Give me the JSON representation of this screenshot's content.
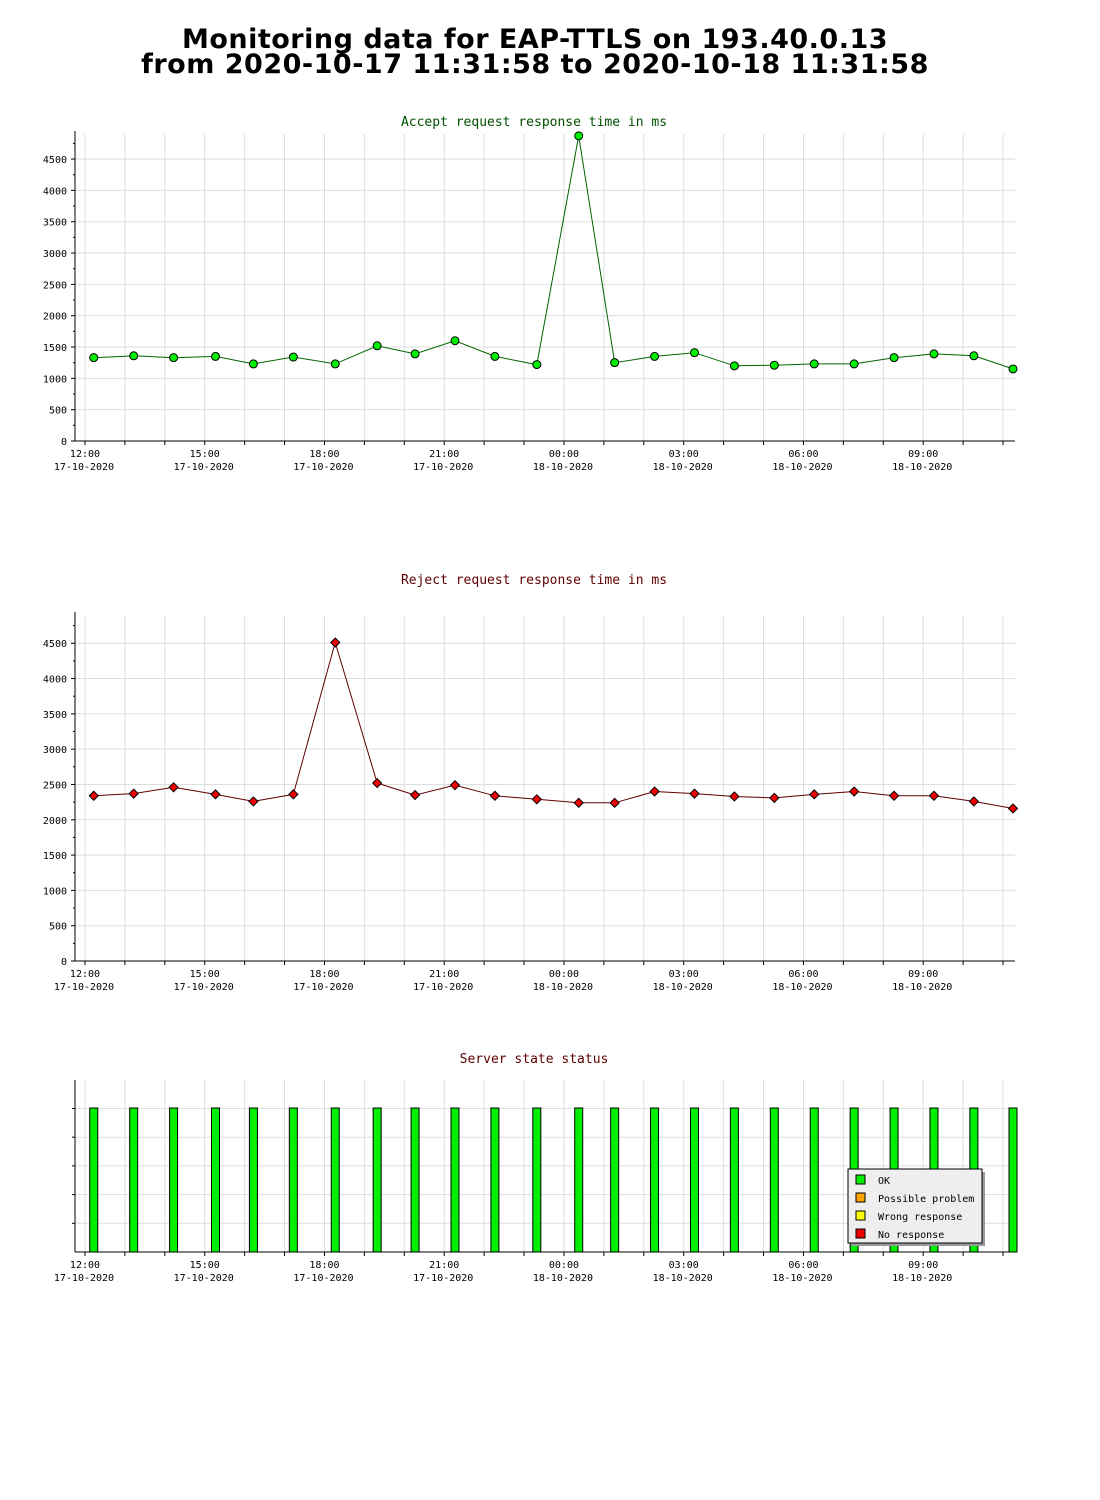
{
  "page": {
    "title_line1": "Monitoring data for EAP-TTLS on 193.40.0.13",
    "title_line2": "from 2020-10-17 11:31:58 to 2020-10-18 11:31:58"
  },
  "colors": {
    "accept_line": "#006400",
    "accept_marker": "#00ee00",
    "reject_line": "#600000",
    "reject_marker": "#ee0000",
    "status_bar": "#00ee00",
    "grid": "#dddddd",
    "legend_ok": "#00ee00",
    "legend_possible": "#ffa500",
    "legend_wrong": "#ffff00",
    "legend_noresp": "#ee0000",
    "accept_title": "#005000",
    "reject_title": "#600000",
    "status_title": "#600000"
  },
  "chart_data": [
    {
      "id": "accept",
      "type": "line",
      "title": "Accept request response time in ms",
      "x_range_hours": [
        11.75,
        35.3
      ],
      "ylim": [
        0,
        4900
      ],
      "yticks": [
        0,
        500,
        1000,
        1500,
        2000,
        2500,
        3000,
        3500,
        4000,
        4500
      ],
      "xticks": [
        {
          "hour": 12,
          "label": "12:00",
          "date": "17-10-2020"
        },
        {
          "hour": 15,
          "label": "15:00",
          "date": "17-10-2020"
        },
        {
          "hour": 18,
          "label": "18:00",
          "date": "17-10-2020"
        },
        {
          "hour": 21,
          "label": "21:00",
          "date": "17-10-2020"
        },
        {
          "hour": 24,
          "label": "00:00",
          "date": "18-10-2020"
        },
        {
          "hour": 27,
          "label": "03:00",
          "date": "18-10-2020"
        },
        {
          "hour": 30,
          "label": "06:00",
          "date": "18-10-2020"
        },
        {
          "hour": 33,
          "label": "09:00",
          "date": "18-10-2020"
        }
      ],
      "grid": true,
      "x_hours": [
        12.22,
        13.22,
        14.22,
        15.27,
        16.22,
        17.22,
        18.27,
        19.32,
        20.27,
        21.27,
        22.27,
        23.32,
        24.37,
        25.27,
        26.27,
        27.27,
        28.27,
        29.27,
        30.27,
        31.27,
        32.27,
        33.27,
        34.27,
        35.25
      ],
      "values": [
        1330,
        1360,
        1330,
        1350,
        1230,
        1340,
        1230,
        1520,
        1390,
        1600,
        1350,
        1220,
        4870,
        1250,
        1350,
        1410,
        1200,
        1210,
        1230,
        1230,
        1330,
        1390,
        1360,
        1150
      ]
    },
    {
      "id": "reject",
      "type": "line",
      "title": "Reject request response time in ms",
      "x_range_hours": [
        11.75,
        35.3
      ],
      "ylim": [
        0,
        4900
      ],
      "yticks": [
        0,
        500,
        1000,
        1500,
        2000,
        2500,
        3000,
        3500,
        4000,
        4500
      ],
      "xticks": [
        {
          "hour": 12,
          "label": "12:00",
          "date": "17-10-2020"
        },
        {
          "hour": 15,
          "label": "15:00",
          "date": "17-10-2020"
        },
        {
          "hour": 18,
          "label": "18:00",
          "date": "17-10-2020"
        },
        {
          "hour": 21,
          "label": "21:00",
          "date": "17-10-2020"
        },
        {
          "hour": 24,
          "label": "00:00",
          "date": "18-10-2020"
        },
        {
          "hour": 27,
          "label": "03:00",
          "date": "18-10-2020"
        },
        {
          "hour": 30,
          "label": "06:00",
          "date": "18-10-2020"
        },
        {
          "hour": 33,
          "label": "09:00",
          "date": "18-10-2020"
        }
      ],
      "grid": true,
      "x_hours": [
        12.22,
        13.22,
        14.22,
        15.27,
        16.22,
        17.22,
        18.27,
        19.32,
        20.27,
        21.27,
        22.27,
        23.32,
        24.37,
        25.27,
        26.27,
        27.27,
        28.27,
        29.27,
        30.27,
        31.27,
        32.27,
        33.27,
        34.27,
        35.25
      ],
      "values": [
        2340,
        2370,
        2460,
        2360,
        2260,
        2360,
        4510,
        2520,
        2350,
        2490,
        2340,
        2290,
        2240,
        2240,
        2400,
        2370,
        2330,
        2310,
        2360,
        2400,
        2340,
        2340,
        2260,
        2160
      ]
    },
    {
      "id": "status",
      "type": "bar",
      "title": "Server state status",
      "x_range_hours": [
        11.75,
        35.3
      ],
      "xticks": [
        {
          "hour": 12,
          "label": "12:00",
          "date": "17-10-2020"
        },
        {
          "hour": 15,
          "label": "15:00",
          "date": "17-10-2020"
        },
        {
          "hour": 18,
          "label": "18:00",
          "date": "17-10-2020"
        },
        {
          "hour": 21,
          "label": "21:00",
          "date": "17-10-2020"
        },
        {
          "hour": 24,
          "label": "00:00",
          "date": "18-10-2020"
        },
        {
          "hour": 27,
          "label": "03:00",
          "date": "18-10-2020"
        },
        {
          "hour": 30,
          "label": "06:00",
          "date": "18-10-2020"
        },
        {
          "hour": 33,
          "label": "09:00",
          "date": "18-10-2020"
        }
      ],
      "x_hours": [
        12.22,
        13.22,
        14.22,
        15.27,
        16.22,
        17.22,
        18.27,
        19.32,
        20.27,
        21.27,
        22.27,
        23.32,
        24.37,
        25.27,
        26.27,
        27.27,
        28.27,
        29.27,
        30.27,
        31.27,
        32.27,
        33.27,
        34.27,
        35.25
      ],
      "states": [
        "OK",
        "OK",
        "OK",
        "OK",
        "OK",
        "OK",
        "OK",
        "OK",
        "OK",
        "OK",
        "OK",
        "OK",
        "OK",
        "OK",
        "OK",
        "OK",
        "OK",
        "OK",
        "OK",
        "OK",
        "OK",
        "OK",
        "OK",
        "OK"
      ],
      "legend_position": "bottom-right",
      "legend": [
        {
          "label": "OK",
          "color": "#00ee00"
        },
        {
          "label": "Possible problem",
          "color": "#ffa500"
        },
        {
          "label": "Wrong response",
          "color": "#ffff00"
        },
        {
          "label": "No response",
          "color": "#ee0000"
        }
      ]
    }
  ]
}
